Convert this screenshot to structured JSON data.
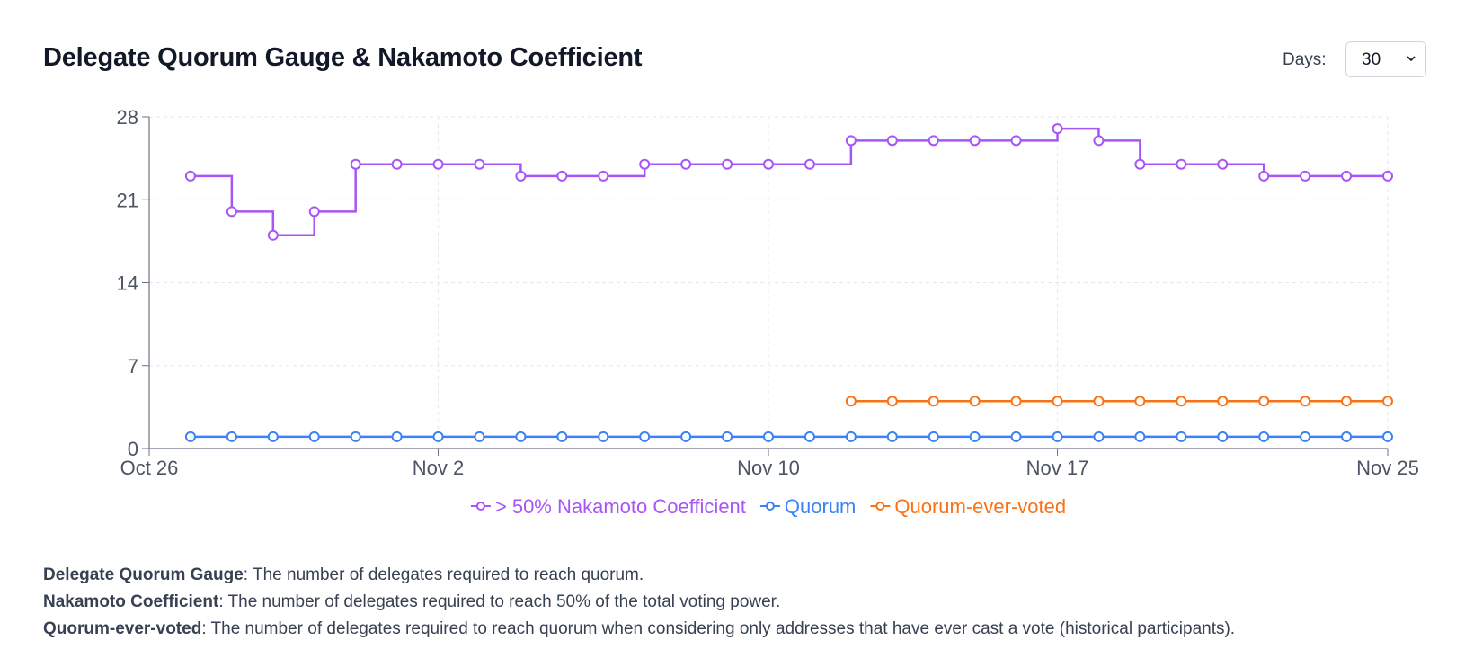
{
  "header": {
    "title": "Delegate Quorum Gauge & Nakamoto Coefficient",
    "days_label": "Days:",
    "days_value": "30"
  },
  "descriptions": [
    {
      "term": "Delegate Quorum Gauge",
      "text": ": The number of delegates required to reach quorum."
    },
    {
      "term": "Nakamoto Coefficient",
      "text": ": The number of delegates required to reach 50% of the total voting power."
    },
    {
      "term": "Quorum-ever-voted",
      "text": ": The number of delegates required to reach quorum when considering only addresses that have ever cast a vote (historical participants)."
    }
  ],
  "chart_data": {
    "type": "line",
    "step": true,
    "title": "Delegate Quorum Gauge & Nakamoto Coefficient",
    "x_tick_labels": [
      "Oct 26",
      "Nov 2",
      "Nov 10",
      "Nov 17",
      "Nov 25"
    ],
    "y_ticks": [
      0,
      7,
      14,
      21,
      28
    ],
    "ylim": [
      0,
      28
    ],
    "xlim": [
      "Oct 26",
      "Nov 25"
    ],
    "grid": true,
    "legend_position": "bottom",
    "x": [
      "Oct 27",
      "Oct 28",
      "Oct 29",
      "Oct 30",
      "Oct 31",
      "Nov 1",
      "Nov 2",
      "Nov 3",
      "Nov 4",
      "Nov 5",
      "Nov 6",
      "Nov 7",
      "Nov 8",
      "Nov 9",
      "Nov 10",
      "Nov 11",
      "Nov 12",
      "Nov 13",
      "Nov 14",
      "Nov 15",
      "Nov 16",
      "Nov 17",
      "Nov 18",
      "Nov 19",
      "Nov 20",
      "Nov 21",
      "Nov 22",
      "Nov 23",
      "Nov 24",
      "Nov 25"
    ],
    "series": [
      {
        "name": "> 50% Nakamoto Coefficient",
        "color": "#a855f7",
        "values": [
          23,
          20,
          18,
          20,
          24,
          24,
          24,
          24,
          23,
          23,
          23,
          24,
          24,
          24,
          24,
          24,
          26,
          26,
          26,
          26,
          26,
          27,
          26,
          24,
          24,
          24,
          23,
          23,
          23,
          23
        ]
      },
      {
        "name": "Quorum",
        "color": "#3b82f6",
        "values": [
          1,
          1,
          1,
          1,
          1,
          1,
          1,
          1,
          1,
          1,
          1,
          1,
          1,
          1,
          1,
          1,
          1,
          1,
          1,
          1,
          1,
          1,
          1,
          1,
          1,
          1,
          1,
          1,
          1,
          1
        ]
      },
      {
        "name": "Quorum-ever-voted",
        "color": "#f97316",
        "values": [
          null,
          null,
          null,
          null,
          null,
          null,
          null,
          null,
          null,
          null,
          null,
          null,
          null,
          null,
          null,
          null,
          4,
          4,
          4,
          4,
          4,
          4,
          4,
          4,
          4,
          4,
          4,
          4,
          4,
          4
        ]
      }
    ]
  }
}
